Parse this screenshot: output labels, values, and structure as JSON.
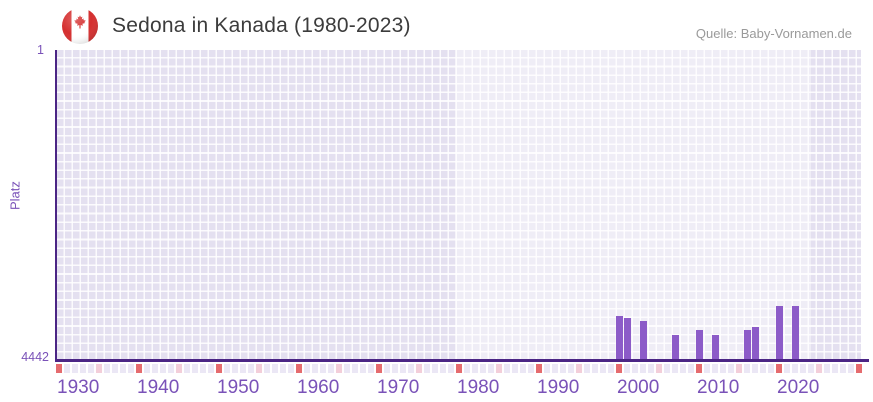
{
  "header": {
    "flag_icon": "canada-flag-icon",
    "title": "Sedona in Kanada (1980-2023)",
    "source": "Quelle: Baby-Vornamen.de"
  },
  "chart_data": {
    "type": "bar",
    "title": "Sedona in Kanada (1980-2023)",
    "xlabel": "",
    "ylabel": "Platz",
    "legend": false,
    "grid": true,
    "yaxis": {
      "min": 1,
      "max": 4442,
      "inverted": true,
      "top_tick_label": "1",
      "bottom_tick_label": "4442"
    },
    "xaxis": {
      "start_year": 1930,
      "end_year": 2030,
      "tick_years": [
        1930,
        1940,
        1950,
        1960,
        1970,
        1980,
        1990,
        2000,
        2010,
        2020
      ],
      "half_decade_years": [
        1935,
        1945,
        1955,
        1965,
        1975,
        1985,
        1995,
        2005,
        2015,
        2025
      ]
    },
    "highlighted_range": {
      "from": 1980,
      "to": 2023
    },
    "series": [
      {
        "name": "Sedona",
        "points": [
          {
            "year": 2000,
            "rank": 3828
          },
          {
            "year": 2001,
            "rank": 3857
          },
          {
            "year": 2003,
            "rank": 3900
          },
          {
            "year": 2007,
            "rank": 4099
          },
          {
            "year": 2010,
            "rank": 4024
          },
          {
            "year": 2012,
            "rank": 4103
          },
          {
            "year": 2016,
            "rank": 4027
          },
          {
            "year": 2017,
            "rank": 3975
          },
          {
            "year": 2020,
            "rank": 3681
          },
          {
            "year": 2022,
            "rank": 3681
          }
        ]
      }
    ],
    "colors": {
      "bar": "#8c5bc8",
      "axis_line": "#4b2585",
      "tick_text": "#7a52b8",
      "decade_cell": "#e56b6e",
      "half_decade_cell": "#f3ced9",
      "year_cell": "#ebe7f5",
      "plot_background": "#e4e0f0",
      "title_text": "#3c3c3c",
      "source_text": "#9a9a9a",
      "flag_red": "#d52f2f"
    }
  }
}
